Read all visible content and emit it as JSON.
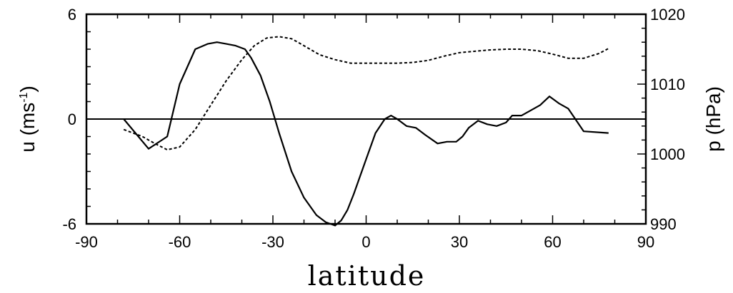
{
  "chart_data": {
    "type": "line",
    "title": "",
    "xlabel": "latitude",
    "ylabel_left": {
      "base": "u (ms",
      "superscript": "-1",
      "close": ")"
    },
    "ylabel_right": "p (hPa)",
    "xlim": [
      -90,
      90
    ],
    "ylim_left": [
      -6,
      6
    ],
    "ylim_right": [
      990,
      1020
    ],
    "grid": false,
    "legend": "none",
    "x_ticks": [
      "-90",
      "-60",
      "-30",
      "0",
      "30",
      "60",
      "90"
    ],
    "y_left_ticks": [
      "-6",
      "0",
      "6"
    ],
    "y_right_ticks": [
      "990",
      "1000",
      "1010",
      "1020"
    ],
    "zero_line": 0,
    "series": [
      {
        "axis": "left",
        "style": "solid",
        "color": "#000000",
        "x": [
          -78,
          -70,
          -64,
          -60,
          -55,
          -51,
          -48,
          -45,
          -42,
          -39,
          -37,
          -34,
          -31,
          -28,
          -24,
          -20,
          -16,
          -13,
          -10,
          -8,
          -6,
          -4,
          -2,
          0,
          3,
          6,
          8,
          10,
          13,
          16,
          19,
          23,
          26,
          29,
          31,
          33,
          36,
          39,
          42,
          45,
          47,
          50,
          53,
          56,
          59,
          62,
          65,
          70,
          78
        ],
        "y": [
          0.0,
          -1.7,
          -1.0,
          2.0,
          4.0,
          4.3,
          4.4,
          4.3,
          4.2,
          4.0,
          3.5,
          2.5,
          1.0,
          -0.8,
          -3.0,
          -4.5,
          -5.5,
          -5.9,
          -6.1,
          -5.8,
          -5.2,
          -4.3,
          -3.3,
          -2.3,
          -0.8,
          0.0,
          0.2,
          0.0,
          -0.4,
          -0.5,
          -0.9,
          -1.4,
          -1.3,
          -1.3,
          -1.0,
          -0.5,
          -0.1,
          -0.3,
          -0.4,
          -0.2,
          0.2,
          0.2,
          0.5,
          0.8,
          1.3,
          0.9,
          0.6,
          -0.7,
          -0.8
        ]
      },
      {
        "axis": "right",
        "style": "dashed",
        "color": "#000000",
        "x": [
          -78,
          -72,
          -68,
          -64,
          -60,
          -55,
          -50,
          -45,
          -40,
          -36,
          -32,
          -28,
          -24,
          -20,
          -15,
          -10,
          -5,
          0,
          5,
          10,
          15,
          20,
          25,
          30,
          35,
          40,
          45,
          50,
          55,
          60,
          65,
          70,
          75,
          78
        ],
        "y": [
          1003.5,
          1002.5,
          1001.5,
          1000.6,
          1001.0,
          1003.5,
          1007.0,
          1010.5,
          1013.5,
          1015.5,
          1016.6,
          1016.8,
          1016.5,
          1015.5,
          1014.2,
          1013.5,
          1013.0,
          1013.0,
          1013.0,
          1013.0,
          1013.1,
          1013.4,
          1014.0,
          1014.5,
          1014.7,
          1014.9,
          1015.0,
          1015.0,
          1014.8,
          1014.3,
          1013.7,
          1013.7,
          1014.4,
          1015.1
        ]
      }
    ]
  }
}
